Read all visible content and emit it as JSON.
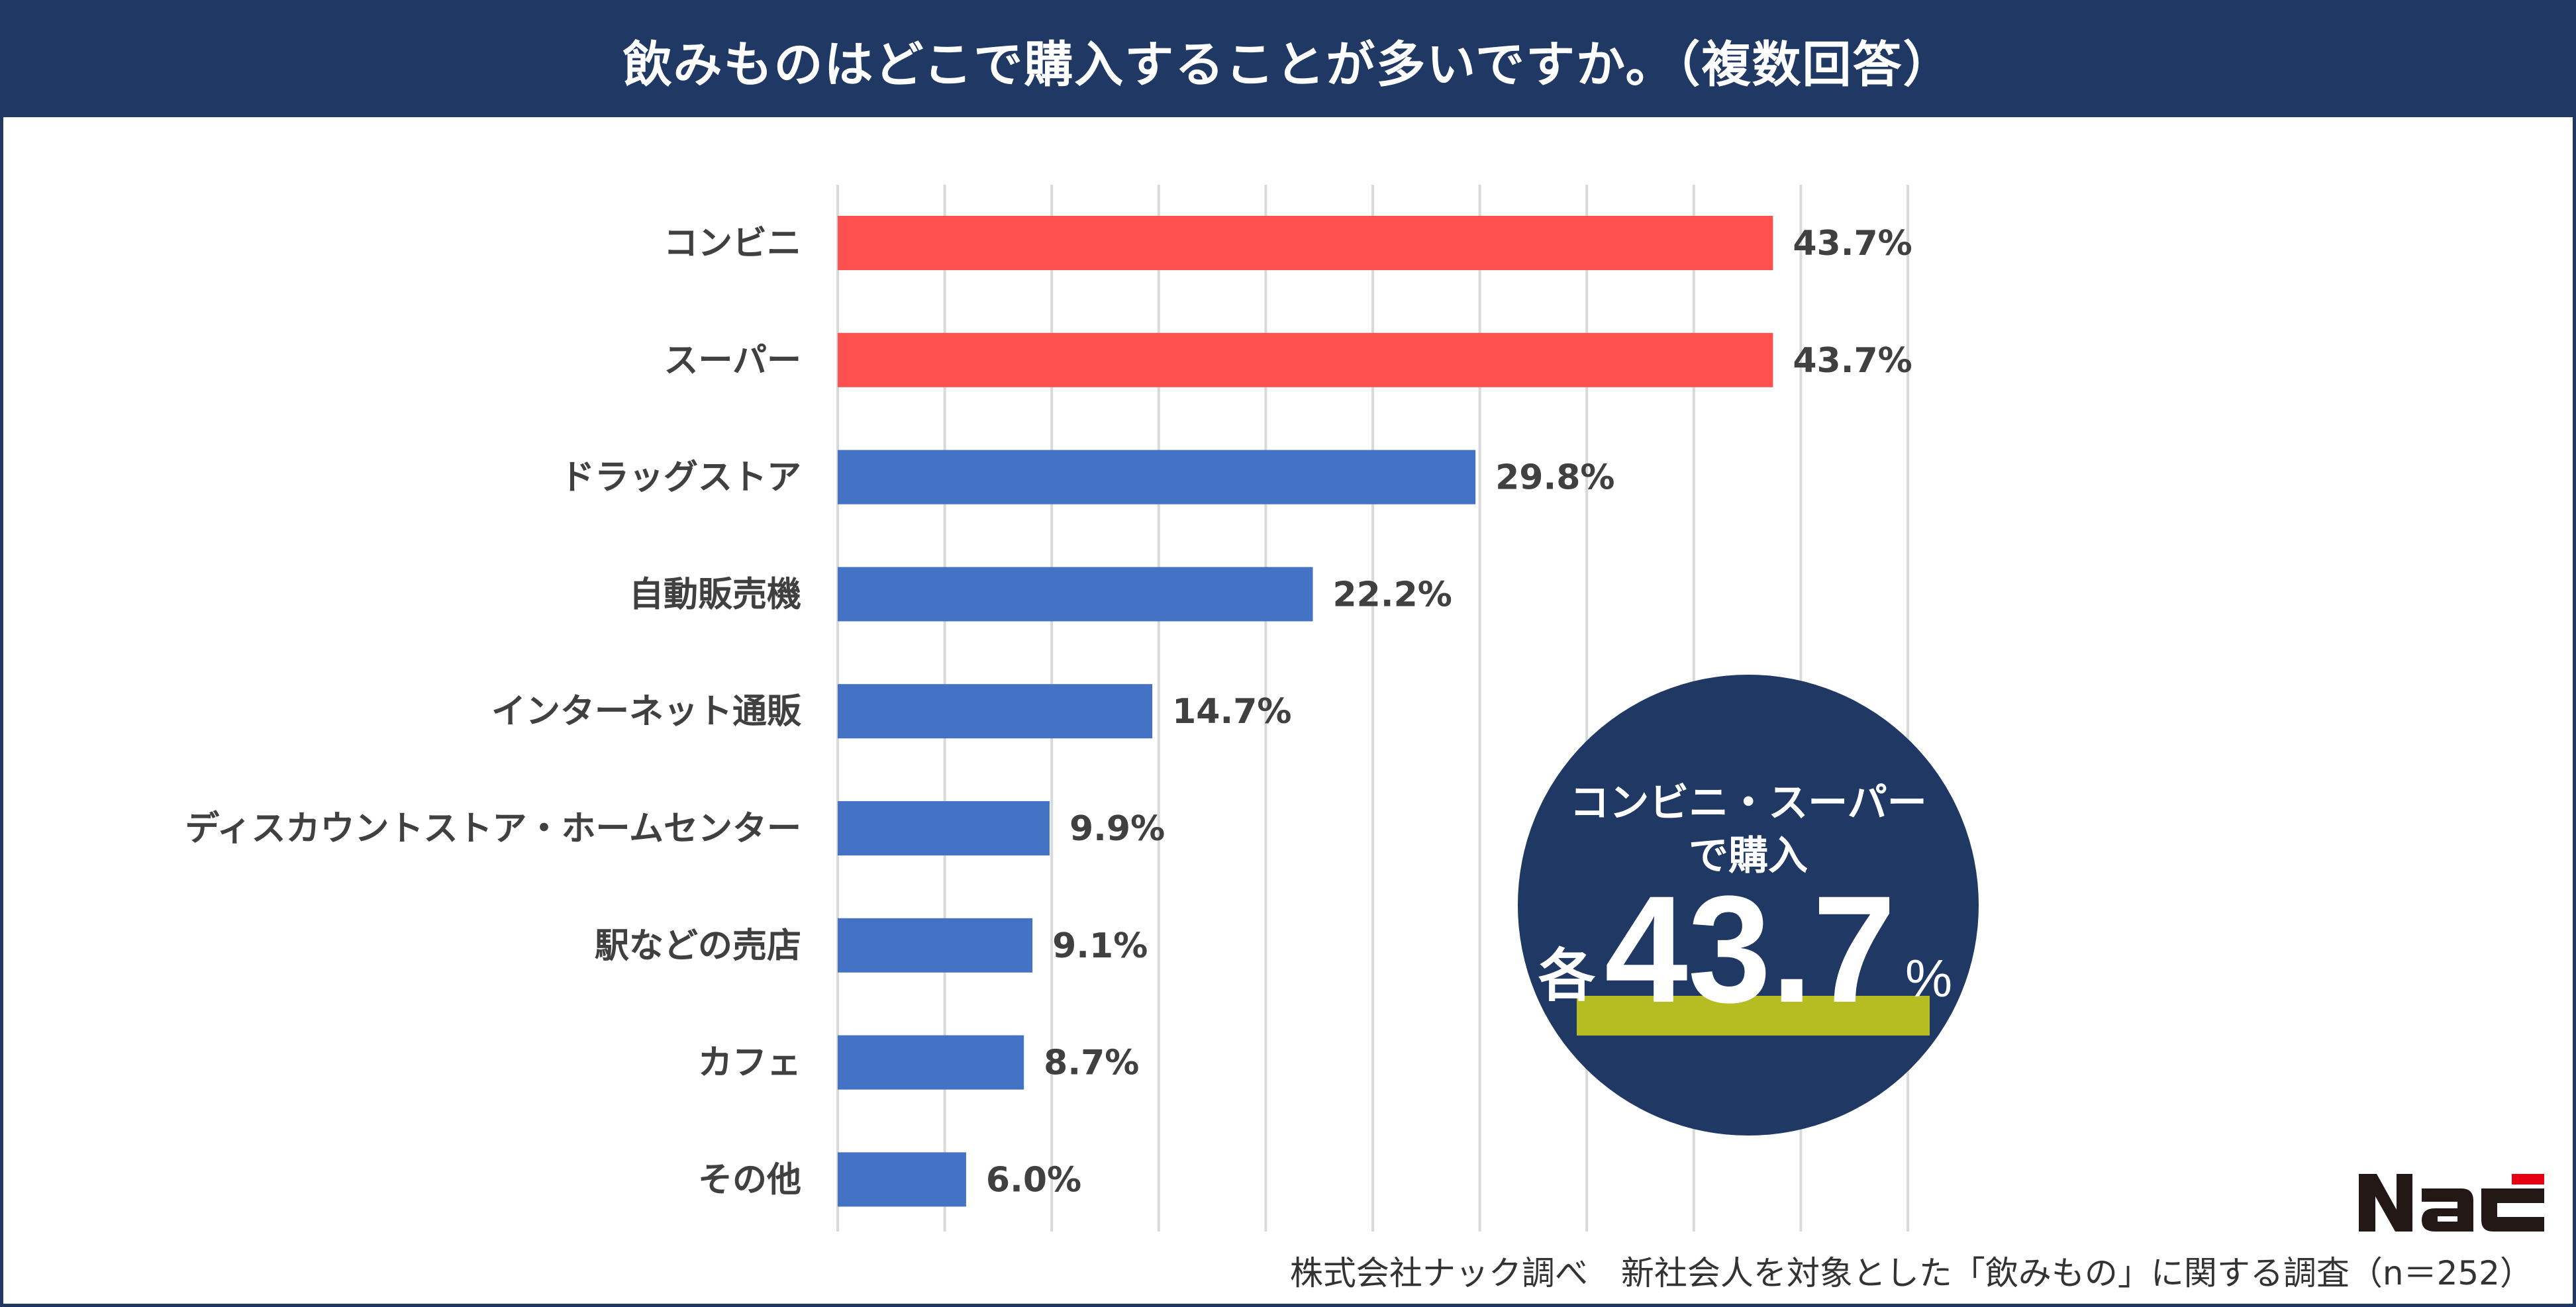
{
  "title": "飲みものはどこで購入することが多いですか。（複数回答）",
  "chart_data": {
    "type": "bar",
    "orientation": "horizontal",
    "title": "飲みものはどこで購入することが多いですか。（複数回答）",
    "categories": [
      "コンビニ",
      "スーパー",
      "ドラッグストア",
      "自動販売機",
      "インターネット通販",
      "ディスカウントストア・ホームセンター",
      "駅などの売店",
      "カフェ",
      "その他"
    ],
    "values": [
      43.7,
      43.7,
      29.8,
      22.2,
      14.7,
      9.9,
      9.1,
      8.7,
      6.0
    ],
    "data_labels": [
      "43.7%",
      "43.7%",
      "29.8%",
      "22.2%",
      "14.7%",
      "9.9%",
      "9.1%",
      "8.7%",
      "6.0%"
    ],
    "highlight_colors": [
      "#FF5050",
      "#FF5050",
      "#4472C4",
      "#4472C4",
      "#4472C4",
      "#4472C4",
      "#4472C4",
      "#4472C4",
      "#4472C4"
    ],
    "xlim": [
      0,
      50
    ],
    "grid": true,
    "unit": "%"
  },
  "callout": {
    "line1": "コンビニ・スーパー",
    "line2": "で購入",
    "prefix": "各",
    "value": "43.7",
    "suffix": "%",
    "circle_color": "#203864",
    "underline_color": "#B5BD22"
  },
  "footer": "株式会社ナック調べ　新社会人を対象とした「飲みもの」に関する調査（n＝252）",
  "logo": "NAC"
}
